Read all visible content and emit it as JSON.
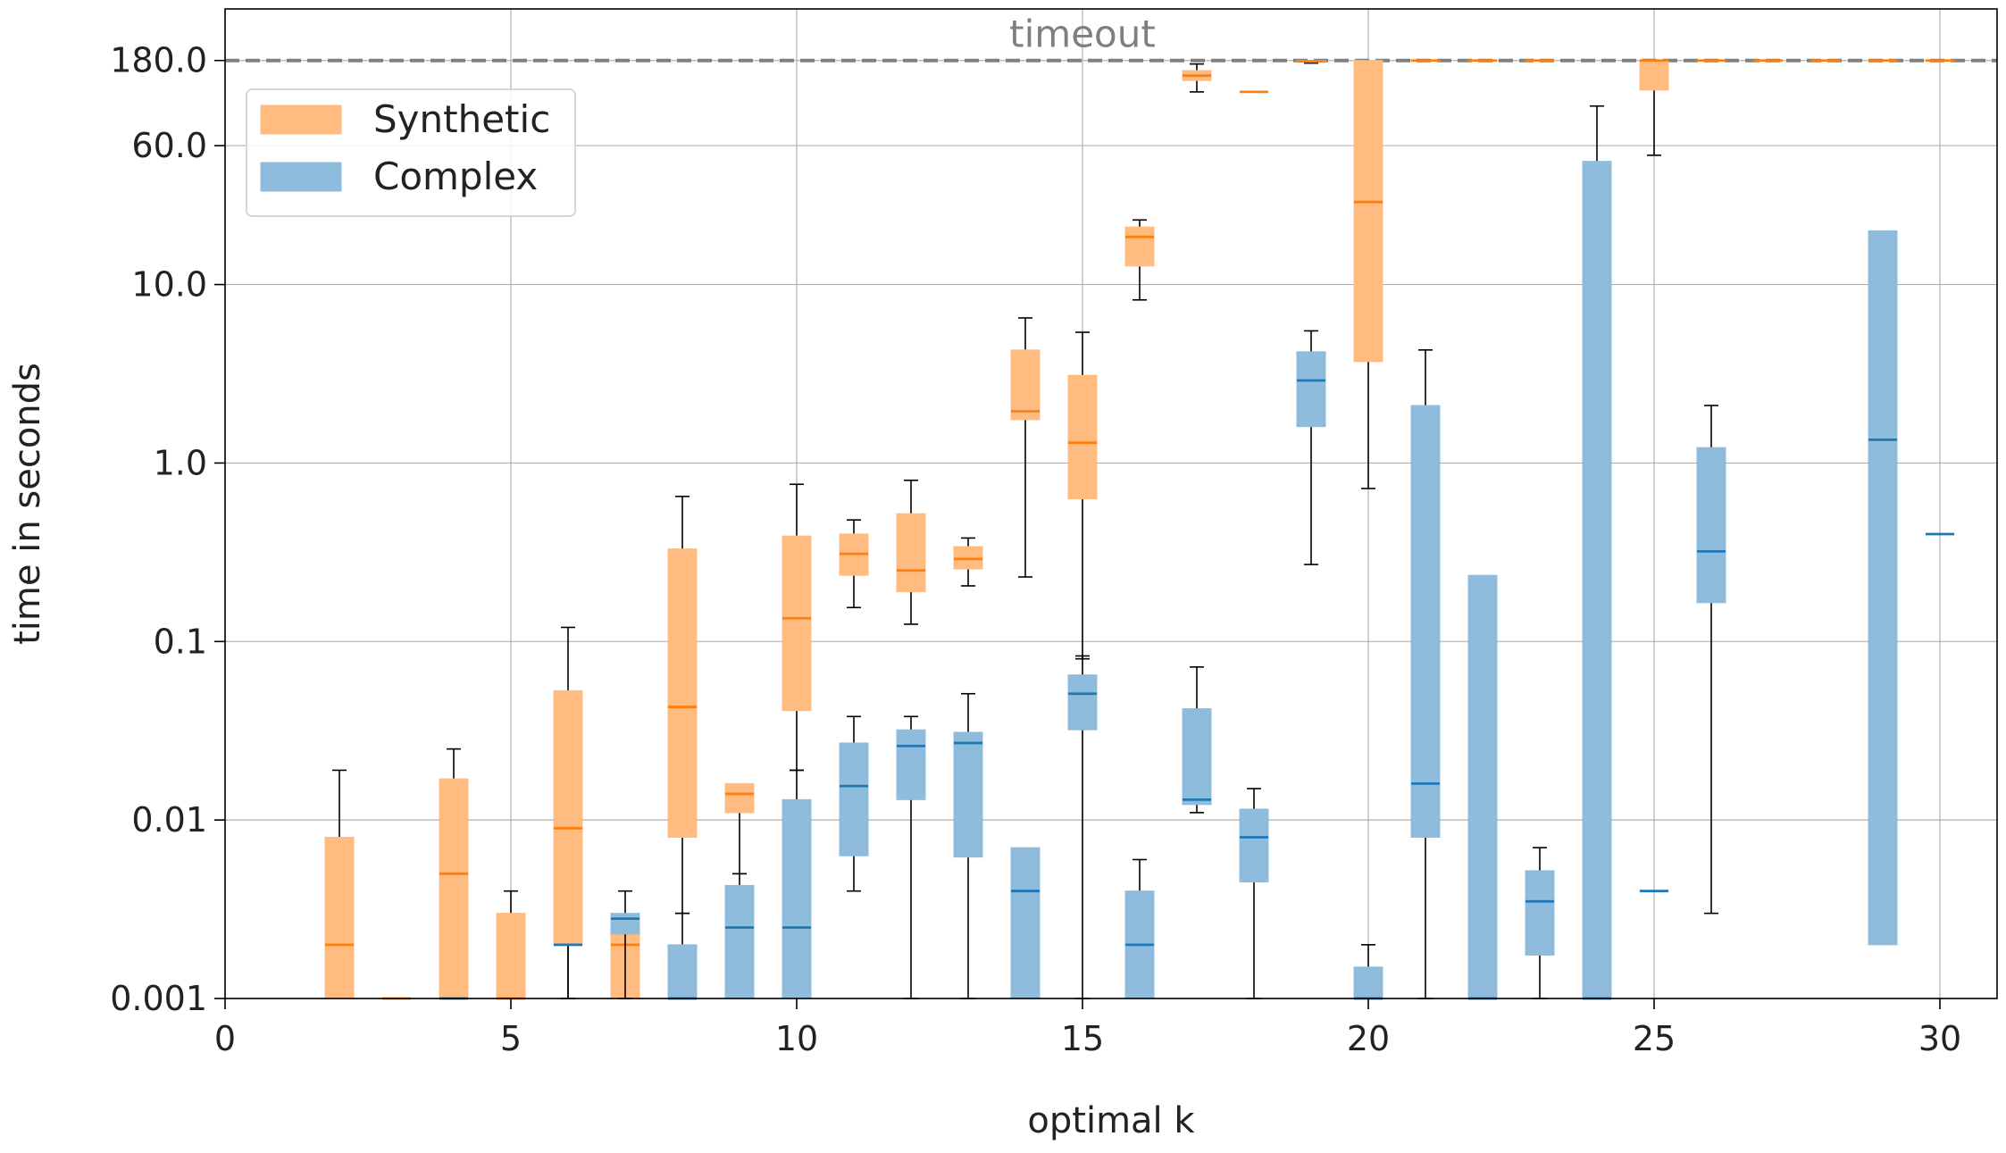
{
  "chart_data": {
    "type": "box",
    "xlabel": "optimal k",
    "ylabel": "time in seconds",
    "x_ticks": [
      0,
      5,
      10,
      15,
      20,
      25,
      30
    ],
    "xlim": [
      0,
      31
    ],
    "y_scale": "log",
    "ylim": [
      0.001,
      350
    ],
    "y_ticks": [
      {
        "value": 0.001,
        "label": "0.001"
      },
      {
        "value": 0.01,
        "label": "0.01"
      },
      {
        "value": 0.1,
        "label": "0.1"
      },
      {
        "value": 1.0,
        "label": "1.0"
      },
      {
        "value": 10.0,
        "label": "10.0"
      },
      {
        "value": 60.0,
        "label": "60.0"
      },
      {
        "value": 180.0,
        "label": "180.0"
      }
    ],
    "grid": true,
    "timeout": {
      "value": 180.0,
      "label": "timeout",
      "color": "#808080"
    },
    "legend": {
      "position": "top-left"
    },
    "series": [
      {
        "name": "Synthetic",
        "color": "#ff7f0e",
        "fill": "#ffbb80",
        "boxes": [
          {
            "k": 2,
            "whislo": 0.001,
            "q1": 0.001,
            "med": 0.002,
            "q3": 0.008,
            "whishi": 0.019
          },
          {
            "k": 3,
            "whislo": 0.001,
            "q1": 0.001,
            "med": 0.001,
            "q3": 0.001,
            "whishi": 0.001
          },
          {
            "k": 4,
            "whislo": 0.001,
            "q1": 0.001,
            "med": 0.005,
            "q3": 0.017,
            "whishi": 0.025
          },
          {
            "k": 5,
            "whislo": 0.001,
            "q1": 0.001,
            "med": 0.001,
            "q3": 0.003,
            "whishi": 0.004
          },
          {
            "k": 6,
            "whislo": 0.001,
            "q1": 0.002,
            "med": 0.009,
            "q3": 0.053,
            "whishi": 0.12
          },
          {
            "k": 7,
            "whislo": 0.001,
            "q1": 0.001,
            "med": 0.002,
            "q3": 0.0023,
            "whishi": 0.0023
          },
          {
            "k": 8,
            "whislo": 0.003,
            "q1": 0.008,
            "med": 0.043,
            "q3": 0.33,
            "whishi": 0.65
          },
          {
            "k": 9,
            "whislo": 0.005,
            "q1": 0.011,
            "med": 0.014,
            "q3": 0.016,
            "whishi": 0.016
          },
          {
            "k": 10,
            "whislo": 0.019,
            "q1": 0.041,
            "med": 0.135,
            "q3": 0.39,
            "whishi": 0.76
          },
          {
            "k": 11,
            "whislo": 0.155,
            "q1": 0.235,
            "med": 0.31,
            "q3": 0.4,
            "whishi": 0.48
          },
          {
            "k": 12,
            "whislo": 0.125,
            "q1": 0.19,
            "med": 0.25,
            "q3": 0.52,
            "whishi": 0.8
          },
          {
            "k": 13,
            "whislo": 0.205,
            "q1": 0.255,
            "med": 0.29,
            "q3": 0.34,
            "whishi": 0.38
          },
          {
            "k": 14,
            "whislo": 0.23,
            "q1": 1.75,
            "med": 1.95,
            "q3": 4.3,
            "whishi": 6.5
          },
          {
            "k": 15,
            "whislo": 0.08,
            "q1": 0.63,
            "med": 1.3,
            "q3": 3.1,
            "whishi": 5.4
          },
          {
            "k": 16,
            "whislo": 8.2,
            "q1": 12.7,
            "med": 18.5,
            "q3": 21.0,
            "whishi": 23.0
          },
          {
            "k": 17,
            "whislo": 120.0,
            "q1": 139.0,
            "med": 148.0,
            "q3": 158.0,
            "whishi": 172.0
          },
          {
            "k": 18,
            "whislo": 120.0,
            "q1": 120.0,
            "med": 120.0,
            "q3": 120.0,
            "whishi": 120.0
          },
          {
            "k": 19,
            "whislo": 174.0,
            "q1": 176.0,
            "med": 178.0,
            "q3": 180.0,
            "whishi": 180.0
          },
          {
            "k": 20,
            "whislo": 0.72,
            "q1": 3.7,
            "med": 29.0,
            "q3": 180.0,
            "whishi": 180.0
          },
          {
            "k": 21,
            "whislo": 180.0,
            "q1": 180.0,
            "med": 180.0,
            "q3": 180.0,
            "whishi": 180.0
          },
          {
            "k": 22,
            "whislo": 180.0,
            "q1": 180.0,
            "med": 180.0,
            "q3": 180.0,
            "whishi": 180.0
          },
          {
            "k": 23,
            "whislo": 180.0,
            "q1": 180.0,
            "med": 180.0,
            "q3": 180.0,
            "whishi": 180.0
          },
          {
            "k": 25,
            "whislo": 53.0,
            "q1": 123.0,
            "med": 180.0,
            "q3": 180.0,
            "whishi": 180.0
          },
          {
            "k": 26,
            "whislo": 180.0,
            "q1": 180.0,
            "med": 180.0,
            "q3": 180.0,
            "whishi": 180.0
          },
          {
            "k": 27,
            "whislo": 180.0,
            "q1": 180.0,
            "med": 180.0,
            "q3": 180.0,
            "whishi": 180.0
          },
          {
            "k": 28,
            "whislo": 180.0,
            "q1": 180.0,
            "med": 180.0,
            "q3": 180.0,
            "whishi": 180.0
          },
          {
            "k": 29,
            "whislo": 180.0,
            "q1": 180.0,
            "med": 180.0,
            "q3": 180.0,
            "whishi": 180.0
          },
          {
            "k": 30,
            "whislo": 180.0,
            "q1": 180.0,
            "med": 180.0,
            "q3": 180.0,
            "whishi": 180.0
          }
        ]
      },
      {
        "name": "Complex",
        "color": "#1f77b4",
        "fill": "#8fbbdc",
        "boxes": [
          {
            "k": 4,
            "whislo": 0.001,
            "q1": 0.001,
            "med": 0.001,
            "q3": 0.001,
            "whishi": 0.001
          },
          {
            "k": 6,
            "whislo": 0.001,
            "q1": 0.002,
            "med": 0.002,
            "q3": 0.002,
            "whishi": 0.002
          },
          {
            "k": 7,
            "whislo": 0.001,
            "q1": 0.0023,
            "med": 0.0028,
            "q3": 0.003,
            "whishi": 0.004
          },
          {
            "k": 8,
            "whislo": 0.001,
            "q1": 0.001,
            "med": 0.001,
            "q3": 0.002,
            "whishi": 0.003
          },
          {
            "k": 9,
            "whislo": 0.001,
            "q1": 0.001,
            "med": 0.0025,
            "q3": 0.0043,
            "whishi": 0.005
          },
          {
            "k": 10,
            "whislo": 0.001,
            "q1": 0.001,
            "med": 0.0025,
            "q3": 0.013,
            "whishi": 0.019
          },
          {
            "k": 11,
            "whislo": 0.004,
            "q1": 0.0063,
            "med": 0.0155,
            "q3": 0.027,
            "whishi": 0.038
          },
          {
            "k": 12,
            "whislo": 0.001,
            "q1": 0.013,
            "med": 0.026,
            "q3": 0.032,
            "whishi": 0.038
          },
          {
            "k": 13,
            "whislo": 0.001,
            "q1": 0.0062,
            "med": 0.027,
            "q3": 0.031,
            "whishi": 0.051
          },
          {
            "k": 14,
            "whislo": 0.001,
            "q1": 0.001,
            "med": 0.004,
            "q3": 0.007,
            "whishi": 0.007
          },
          {
            "k": 15,
            "whislo": 0.001,
            "q1": 0.032,
            "med": 0.051,
            "q3": 0.065,
            "whishi": 0.083
          },
          {
            "k": 16,
            "whislo": 0.001,
            "q1": 0.001,
            "med": 0.002,
            "q3": 0.004,
            "whishi": 0.006
          },
          {
            "k": 17,
            "whislo": 0.011,
            "q1": 0.0122,
            "med": 0.013,
            "q3": 0.042,
            "whishi": 0.072
          },
          {
            "k": 18,
            "whislo": 0.001,
            "q1": 0.0045,
            "med": 0.008,
            "q3": 0.0115,
            "whishi": 0.015
          },
          {
            "k": 19,
            "whislo": 0.27,
            "q1": 1.6,
            "med": 2.9,
            "q3": 4.2,
            "whishi": 5.5
          },
          {
            "k": 20,
            "whislo": 0.001,
            "q1": 0.001,
            "med": 0.001,
            "q3": 0.0015,
            "whishi": 0.002
          },
          {
            "k": 21,
            "whislo": 0.001,
            "q1": 0.008,
            "med": 0.016,
            "q3": 2.1,
            "whishi": 4.3
          },
          {
            "k": 22,
            "whislo": 0.001,
            "q1": 0.001,
            "med": 0.001,
            "q3": 0.235,
            "whishi": 0.235
          },
          {
            "k": 23,
            "whislo": 0.001,
            "q1": 0.00175,
            "med": 0.0035,
            "q3": 0.0052,
            "whishi": 0.007
          },
          {
            "k": 24,
            "whislo": 0.001,
            "q1": 0.001,
            "med": 0.001,
            "q3": 49.0,
            "whishi": 100.0
          },
          {
            "k": 25,
            "whislo": 0.004,
            "q1": 0.004,
            "med": 0.004,
            "q3": 0.004,
            "whishi": 0.004
          },
          {
            "k": 26,
            "whislo": 0.003,
            "q1": 0.165,
            "med": 0.32,
            "q3": 1.22,
            "whishi": 2.1
          },
          {
            "k": 29,
            "whislo": 0.002,
            "q1": 0.002,
            "med": 1.35,
            "q3": 20.0,
            "whishi": 20.0
          },
          {
            "k": 30,
            "whislo": 0.4,
            "q1": 0.4,
            "med": 0.4,
            "q3": 0.4,
            "whishi": 0.4
          }
        ]
      }
    ]
  }
}
